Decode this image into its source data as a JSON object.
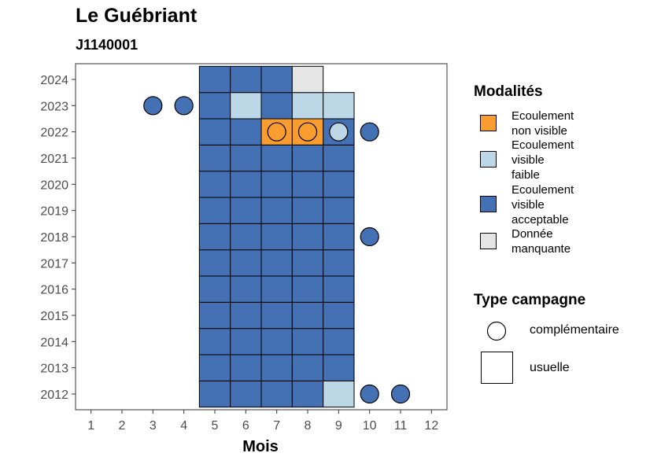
{
  "title": "Le Guébriant",
  "subtitle": "J1140001",
  "legend": {
    "fill_title": "Modalités",
    "fill_items": [
      {
        "label": "Ecoulement\nnon visible",
        "color": "#F99D31"
      },
      {
        "label": "Ecoulement\nvisible\nfaible",
        "color": "#BCD7E6"
      },
      {
        "label": "Ecoulement\nvisible\nacceptable",
        "color": "#4471B4"
      },
      {
        "label": "Donnée\nmanquante",
        "color": "#E5E5E5"
      }
    ],
    "shape_title": "Type campagne",
    "shape_items": [
      {
        "label": "complémentaire",
        "shape": "circle"
      },
      {
        "label": "usuelle",
        "shape": "square"
      }
    ]
  },
  "chart_data": {
    "type": "heatmap",
    "xlabel": "Mois",
    "ylabel": "",
    "x_ticks": [
      "1",
      "2",
      "3",
      "4",
      "5",
      "6",
      "7",
      "8",
      "9",
      "10",
      "11",
      "12"
    ],
    "y_ticks": [
      "2012",
      "2013",
      "2014",
      "2015",
      "2016",
      "2017",
      "2018",
      "2019",
      "2020",
      "2021",
      "2022",
      "2023",
      "2024"
    ],
    "xlim": [
      0.5,
      12.5
    ],
    "ylim": [
      2011.4,
      2024.6
    ],
    "grid": false,
    "legend_position": "right",
    "colors": {
      "non_visible": "#F99D31",
      "faible": "#BCD7E6",
      "acceptable": "#4471B4",
      "manquante": "#E5E5E5"
    },
    "usuelle": [
      {
        "year": 2012,
        "months": [
          5,
          6,
          7,
          8
        ],
        "value": "acceptable"
      },
      {
        "year": 2012,
        "months": [
          9
        ],
        "value": "faible"
      },
      {
        "year": 2013,
        "months": [
          5,
          6,
          7,
          8,
          9
        ],
        "value": "acceptable"
      },
      {
        "year": 2014,
        "months": [
          5,
          6,
          7,
          8,
          9
        ],
        "value": "acceptable"
      },
      {
        "year": 2015,
        "months": [
          5,
          6,
          7,
          8,
          9
        ],
        "value": "acceptable"
      },
      {
        "year": 2016,
        "months": [
          5,
          6,
          7,
          8,
          9
        ],
        "value": "acceptable"
      },
      {
        "year": 2017,
        "months": [
          5,
          6,
          7,
          8,
          9
        ],
        "value": "acceptable"
      },
      {
        "year": 2018,
        "months": [
          5,
          6,
          7,
          8,
          9
        ],
        "value": "acceptable"
      },
      {
        "year": 2019,
        "months": [
          5,
          6,
          7,
          8,
          9
        ],
        "value": "acceptable"
      },
      {
        "year": 2020,
        "months": [
          5,
          6,
          7,
          8,
          9
        ],
        "value": "acceptable"
      },
      {
        "year": 2021,
        "months": [
          5,
          6,
          7,
          8,
          9
        ],
        "value": "acceptable"
      },
      {
        "year": 2022,
        "months": [
          5,
          6,
          9
        ],
        "value": "acceptable"
      },
      {
        "year": 2022,
        "months": [
          7,
          8
        ],
        "value": "non_visible"
      },
      {
        "year": 2023,
        "months": [
          5,
          7
        ],
        "value": "acceptable"
      },
      {
        "year": 2023,
        "months": [
          6,
          8,
          9
        ],
        "value": "faible"
      },
      {
        "year": 2024,
        "months": [
          5,
          6,
          7
        ],
        "value": "acceptable"
      },
      {
        "year": 2024,
        "months": [
          8
        ],
        "value": "manquante"
      }
    ],
    "complementaire": [
      {
        "year": 2012,
        "month": 10,
        "value": "acceptable"
      },
      {
        "year": 2012,
        "month": 11,
        "value": "acceptable"
      },
      {
        "year": 2018,
        "month": 10,
        "value": "acceptable"
      },
      {
        "year": 2022,
        "month": 7,
        "value": "non_visible"
      },
      {
        "year": 2022,
        "month": 8,
        "value": "non_visible"
      },
      {
        "year": 2022,
        "month": 9,
        "value": "faible"
      },
      {
        "year": 2022,
        "month": 10,
        "value": "acceptable"
      },
      {
        "year": 2023,
        "month": 3,
        "value": "acceptable"
      },
      {
        "year": 2023,
        "month": 4,
        "value": "acceptable"
      }
    ]
  }
}
